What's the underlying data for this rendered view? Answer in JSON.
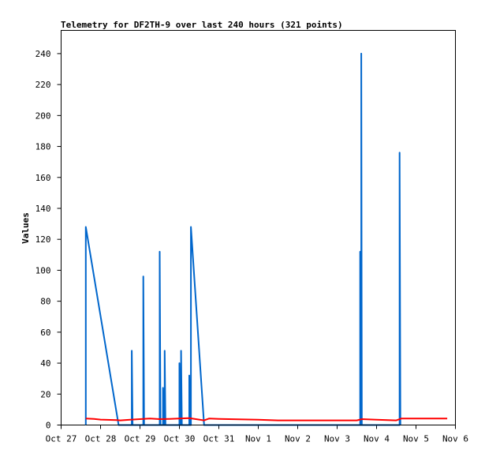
{
  "chart_data": {
    "type": "line",
    "title": "Telemetry for DF2TH-9 over last 240 hours (321 points)",
    "xlabel": "",
    "ylabel": "Values",
    "xlim": [
      "Oct 27",
      "Nov 6"
    ],
    "ylim": [
      0,
      255
    ],
    "x_tick_labels": [
      "Oct 27",
      "Oct 28",
      "Oct 29",
      "Oct 30",
      "Oct 31",
      "Nov 1",
      "Nov 2",
      "Nov 3",
      "Nov 4",
      "Nov 5",
      "Nov 6"
    ],
    "y_ticks": [
      0,
      20,
      40,
      60,
      80,
      100,
      120,
      140,
      160,
      180,
      200,
      220,
      240
    ],
    "grid": false,
    "legend": "none",
    "series": [
      {
        "color": "#0066cc",
        "points": [
          [
            "2024-10-27 15:00",
            0
          ],
          [
            "2024-10-27 15:00",
            128
          ],
          [
            "2024-10-28 11:00",
            0
          ],
          [
            "2024-10-28 19:00",
            0
          ],
          [
            "2024-10-28 19:00",
            48
          ],
          [
            "2024-10-28 19:30",
            0
          ],
          [
            "2024-10-29 02:00",
            0
          ],
          [
            "2024-10-29 02:00",
            96
          ],
          [
            "2024-10-29 02:30",
            0
          ],
          [
            "2024-10-29 12:00",
            0
          ],
          [
            "2024-10-29 12:00",
            112
          ],
          [
            "2024-10-29 12:30",
            0
          ],
          [
            "2024-10-29 14:00",
            0
          ],
          [
            "2024-10-29 14:00",
            24
          ],
          [
            "2024-10-29 14:30",
            0
          ],
          [
            "2024-10-29 15:00",
            0
          ],
          [
            "2024-10-29 15:00",
            48
          ],
          [
            "2024-10-29 15:30",
            0
          ],
          [
            "2024-10-30 00:00",
            0
          ],
          [
            "2024-10-30 00:00",
            40
          ],
          [
            "2024-10-30 00:30",
            0
          ],
          [
            "2024-10-30 01:00",
            0
          ],
          [
            "2024-10-30 01:00",
            48
          ],
          [
            "2024-10-30 01:30",
            0
          ],
          [
            "2024-10-30 06:00",
            0
          ],
          [
            "2024-10-30 06:00",
            32
          ],
          [
            "2024-10-30 06:30",
            0
          ],
          [
            "2024-10-30 07:00",
            0
          ],
          [
            "2024-10-30 07:00",
            128
          ],
          [
            "2024-10-30 15:00",
            0
          ],
          [
            "2024-11-03 14:00",
            0
          ],
          [
            "2024-11-03 14:00",
            112
          ],
          [
            "2024-11-03 14:30",
            0
          ],
          [
            "2024-11-03 14:40",
            0
          ],
          [
            "2024-11-03 14:40",
            240
          ],
          [
            "2024-11-03 15:00",
            0
          ],
          [
            "2024-11-04 14:00",
            0
          ],
          [
            "2024-11-04 14:00",
            176
          ],
          [
            "2024-11-04 14:30",
            0
          ]
        ]
      },
      {
        "color": "#ff0000",
        "points": [
          [
            "2024-10-27 15:00",
            4.2
          ],
          [
            "2024-10-27 20:00",
            4.0
          ],
          [
            "2024-10-28 00:00",
            3.5
          ],
          [
            "2024-10-28 10:00",
            3.2
          ],
          [
            "2024-10-28 12:00",
            3.0
          ],
          [
            "2024-10-28 18:00",
            3.4
          ],
          [
            "2024-10-29 00:00",
            3.8
          ],
          [
            "2024-10-29 06:00",
            4.2
          ],
          [
            "2024-10-29 12:00",
            3.8
          ],
          [
            "2024-10-29 18:00",
            4.0
          ],
          [
            "2024-10-30 06:00",
            4.5
          ],
          [
            "2024-10-30 12:00",
            3.5
          ],
          [
            "2024-10-30 15:00",
            3.0
          ],
          [
            "2024-10-30 18:00",
            4.2
          ],
          [
            "2024-10-31 00:00",
            4.0
          ],
          [
            "2024-10-31 12:00",
            3.7
          ],
          [
            "2024-11-01 00:00",
            3.4
          ],
          [
            "2024-11-01 12:00",
            3.0
          ],
          [
            "2024-11-02 12:00",
            3.0
          ],
          [
            "2024-11-03 12:00",
            3.0
          ],
          [
            "2024-11-03 15:00",
            3.8
          ],
          [
            "2024-11-04 00:00",
            3.4
          ],
          [
            "2024-11-04 12:00",
            3.0
          ],
          [
            "2024-11-04 15:00",
            4.2
          ],
          [
            "2024-11-05 12:00",
            4.2
          ],
          [
            "2024-11-05 19:00",
            4.2
          ]
        ]
      },
      {
        "color": "#000000",
        "points": [
          [
            "2024-10-27 15:00",
            0
          ],
          [
            "2024-11-05 19:00",
            0
          ]
        ]
      }
    ]
  }
}
